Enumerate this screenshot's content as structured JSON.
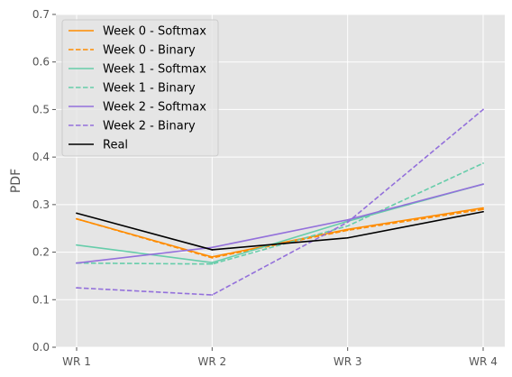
{
  "chart_data": {
    "type": "line",
    "categories": [
      "WR 1",
      "WR 2",
      "WR 3",
      "WR 4"
    ],
    "ylabel": "PDF",
    "xlabel": "",
    "ylim": [
      0,
      0.7
    ],
    "yticks": [
      "0.0",
      "0.1",
      "0.2",
      "0.3",
      "0.4",
      "0.5",
      "0.6",
      "0.7"
    ],
    "grid": true,
    "legend_position": "top-left",
    "series": [
      {
        "name": "Week 0 - Softmax",
        "color": "#ff8c00",
        "dash": "solid",
        "values": [
          0.27,
          0.19,
          0.248,
          0.293
        ]
      },
      {
        "name": "Week 0 - Binary",
        "color": "#ff8c00",
        "dash": "dashed",
        "values": [
          0.27,
          0.188,
          0.246,
          0.29
        ]
      },
      {
        "name": "Week 1 - Softmax",
        "color": "#66cdaa",
        "dash": "solid",
        "values": [
          0.215,
          0.178,
          0.265,
          0.343
        ]
      },
      {
        "name": "Week 1 - Binary",
        "color": "#66cdaa",
        "dash": "dashed",
        "values": [
          0.177,
          0.175,
          0.255,
          0.387
        ]
      },
      {
        "name": "Week 2 - Softmax",
        "color": "#9370db",
        "dash": "solid",
        "values": [
          0.177,
          0.21,
          0.268,
          0.343
        ]
      },
      {
        "name": "Week 2 - Binary",
        "color": "#9370db",
        "dash": "dashed",
        "values": [
          0.125,
          0.11,
          0.263,
          0.5
        ]
      },
      {
        "name": "Real",
        "color": "#000000",
        "dash": "solid",
        "values": [
          0.282,
          0.205,
          0.23,
          0.285
        ]
      }
    ]
  }
}
